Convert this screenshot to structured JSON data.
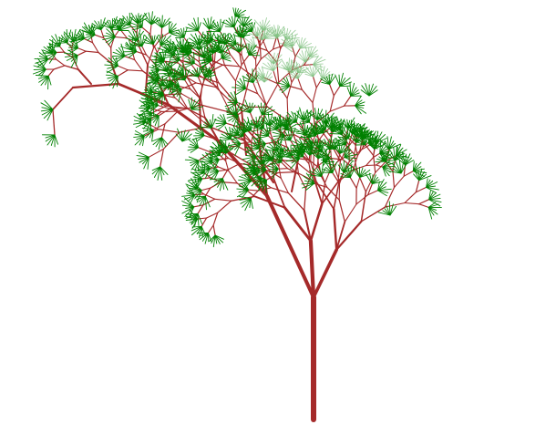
{
  "scene": {
    "subject": "fractal-tree",
    "background_color": "#ffffff",
    "branch_color": "#a52a2a",
    "leaf_color": "#008000",
    "leaf_color_faded": "#7fc07f"
  }
}
